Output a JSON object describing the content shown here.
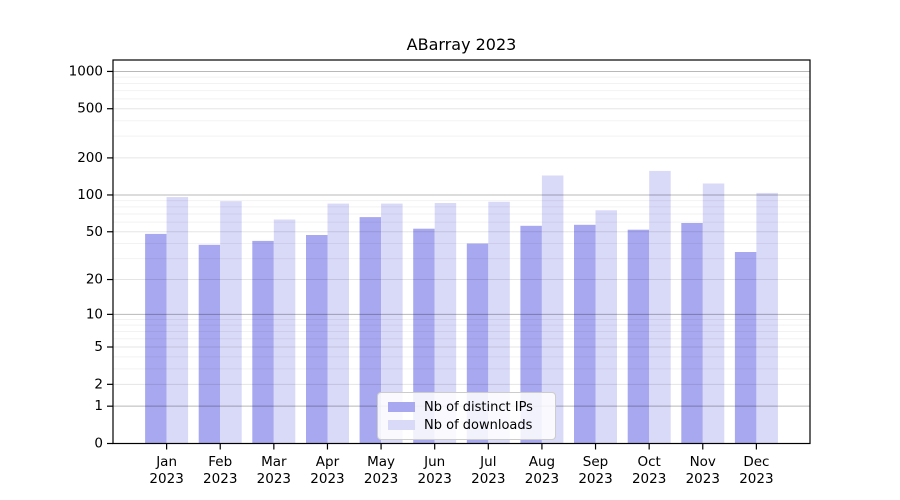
{
  "figure": {
    "background": "#ffffff"
  },
  "chart_data": {
    "type": "bar",
    "title": "ABarray 2023",
    "xlabel": "",
    "ylabel": "",
    "categories": [
      "Jan 2023",
      "Feb 2023",
      "Mar 2023",
      "Apr 2023",
      "May 2023",
      "Jun 2023",
      "Jul 2023",
      "Aug 2023",
      "Sep 2023",
      "Oct 2023",
      "Nov 2023",
      "Dec 2023"
    ],
    "series": [
      {
        "name": "Nb of distinct IPs",
        "color": "#a8a8f0",
        "values": [
          48,
          39,
          42,
          47,
          66,
          53,
          40,
          56,
          57,
          52,
          59,
          34
        ]
      },
      {
        "name": "Nb of downloads",
        "color": "#d9d9f8",
        "values": [
          96,
          89,
          63,
          85,
          85,
          86,
          88,
          144,
          75,
          157,
          124,
          104
        ]
      }
    ],
    "yscale": "log1p",
    "ylim": [
      0,
      1237
    ],
    "yticks": [
      0,
      1,
      2,
      5,
      10,
      20,
      50,
      100,
      200,
      500,
      1000
    ],
    "major_gridlines": [
      1,
      10,
      100,
      1000
    ],
    "minor_gridlines": [
      2,
      3,
      4,
      5,
      6,
      7,
      8,
      9,
      20,
      30,
      40,
      50,
      60,
      70,
      80,
      90,
      200,
      300,
      400,
      500,
      600,
      700,
      800,
      900
    ],
    "grid": true,
    "legend": {
      "position": "lower-center-inside"
    },
    "colors": {
      "axis": "#000000",
      "major_grid": "rgba(0,0,0,0.28)",
      "tick_grid": "rgba(0,0,0,0.10)",
      "minor_grid": "rgba(0,0,0,0.05)",
      "text": "#000000"
    }
  }
}
